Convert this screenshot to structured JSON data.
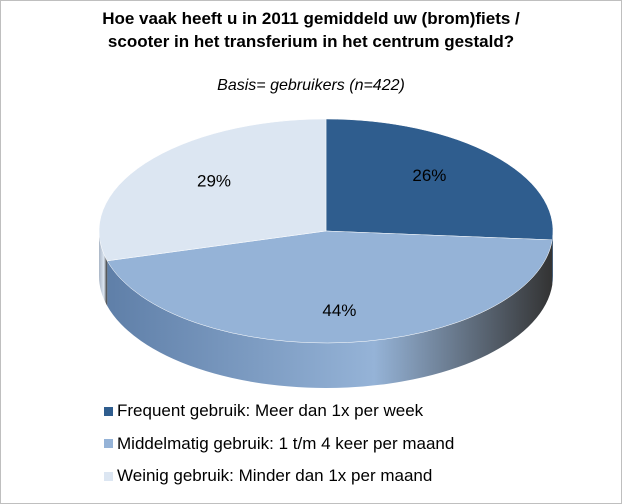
{
  "chart_data": {
    "type": "pie",
    "title": "Hoe vaak heeft u in 2011 gemiddeld uw (brom)fiets / scooter in het transferium in het centrum gestald?",
    "subtitle": "Basis= gebruikers (n=422)",
    "categories": [
      "Frequent gebruik: Meer dan 1x per week",
      "Middelmatig gebruik: 1 t/m 4 keer per maand",
      "Weinig gebruik: Minder dan 1x per maand"
    ],
    "values": [
      26,
      44,
      29
    ],
    "value_labels": [
      "26%",
      "44%",
      "29%"
    ],
    "colors": [
      "#2f5d8e",
      "#95b3d7",
      "#dce6f2"
    ],
    "side_colors": [
      "#244a72",
      "#5f7fa8",
      "#aab6c6"
    ],
    "legend": "bottom"
  }
}
